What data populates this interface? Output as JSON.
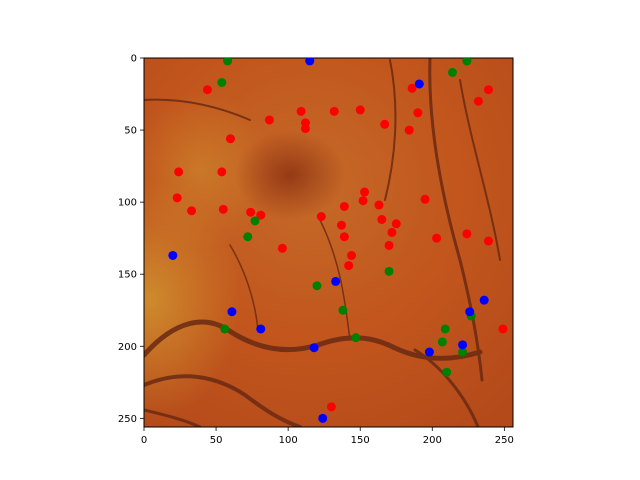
{
  "chart_data": {
    "type": "scatter",
    "background": "fundus retina image (orange-red retinal photograph with dark vessels)",
    "title": "",
    "xlabel": "",
    "ylabel": "",
    "xlim": [
      0,
      256
    ],
    "ylim": [
      256,
      0
    ],
    "y_inverted": true,
    "grid": false,
    "xticks": [
      0,
      50,
      100,
      150,
      200,
      250
    ],
    "yticks": [
      0,
      50,
      100,
      150,
      200,
      250
    ],
    "series": [
      {
        "color": "#ff0000",
        "points": [
          [
            44,
            22
          ],
          [
            87,
            43
          ],
          [
            109,
            37
          ],
          [
            112,
            45
          ],
          [
            112,
            49
          ],
          [
            132,
            37
          ],
          [
            150,
            36
          ],
          [
            167,
            46
          ],
          [
            184,
            50
          ],
          [
            186,
            21
          ],
          [
            190,
            38
          ],
          [
            232,
            30
          ],
          [
            239,
            22
          ],
          [
            60,
            56
          ],
          [
            24,
            79
          ],
          [
            54,
            79
          ],
          [
            23,
            97
          ],
          [
            33,
            106
          ],
          [
            55,
            105
          ],
          [
            74,
            107
          ],
          [
            81,
            109
          ],
          [
            96,
            132
          ],
          [
            123,
            110
          ],
          [
            139,
            103
          ],
          [
            152,
            99
          ],
          [
            153,
            93
          ],
          [
            163,
            102
          ],
          [
            165,
            112
          ],
          [
            175,
            115
          ],
          [
            195,
            98
          ],
          [
            137,
            116
          ],
          [
            139,
            124
          ],
          [
            144,
            137
          ],
          [
            142,
            144
          ],
          [
            172,
            121
          ],
          [
            170,
            130
          ],
          [
            203,
            125
          ],
          [
            224,
            122
          ],
          [
            239,
            127
          ],
          [
            249,
            188
          ],
          [
            130,
            242
          ]
        ]
      },
      {
        "color": "#008000",
        "points": [
          [
            58,
            2
          ],
          [
            54,
            17
          ],
          [
            214,
            10
          ],
          [
            224,
            2
          ],
          [
            77,
            113
          ],
          [
            72,
            124
          ],
          [
            120,
            158
          ],
          [
            170,
            148
          ],
          [
            138,
            175
          ],
          [
            56,
            188
          ],
          [
            147,
            194
          ],
          [
            209,
            188
          ],
          [
            207,
            197
          ],
          [
            221,
            204
          ],
          [
            210,
            218
          ],
          [
            227,
            179
          ]
        ]
      },
      {
        "color": "#0000ff",
        "points": [
          [
            115,
            2
          ],
          [
            191,
            18
          ],
          [
            20,
            137
          ],
          [
            133,
            155
          ],
          [
            61,
            176
          ],
          [
            81,
            188
          ],
          [
            118,
            201
          ],
          [
            124,
            250
          ],
          [
            226,
            176
          ],
          [
            236,
            168
          ],
          [
            198,
            204
          ],
          [
            221,
            199
          ]
        ]
      }
    ]
  }
}
